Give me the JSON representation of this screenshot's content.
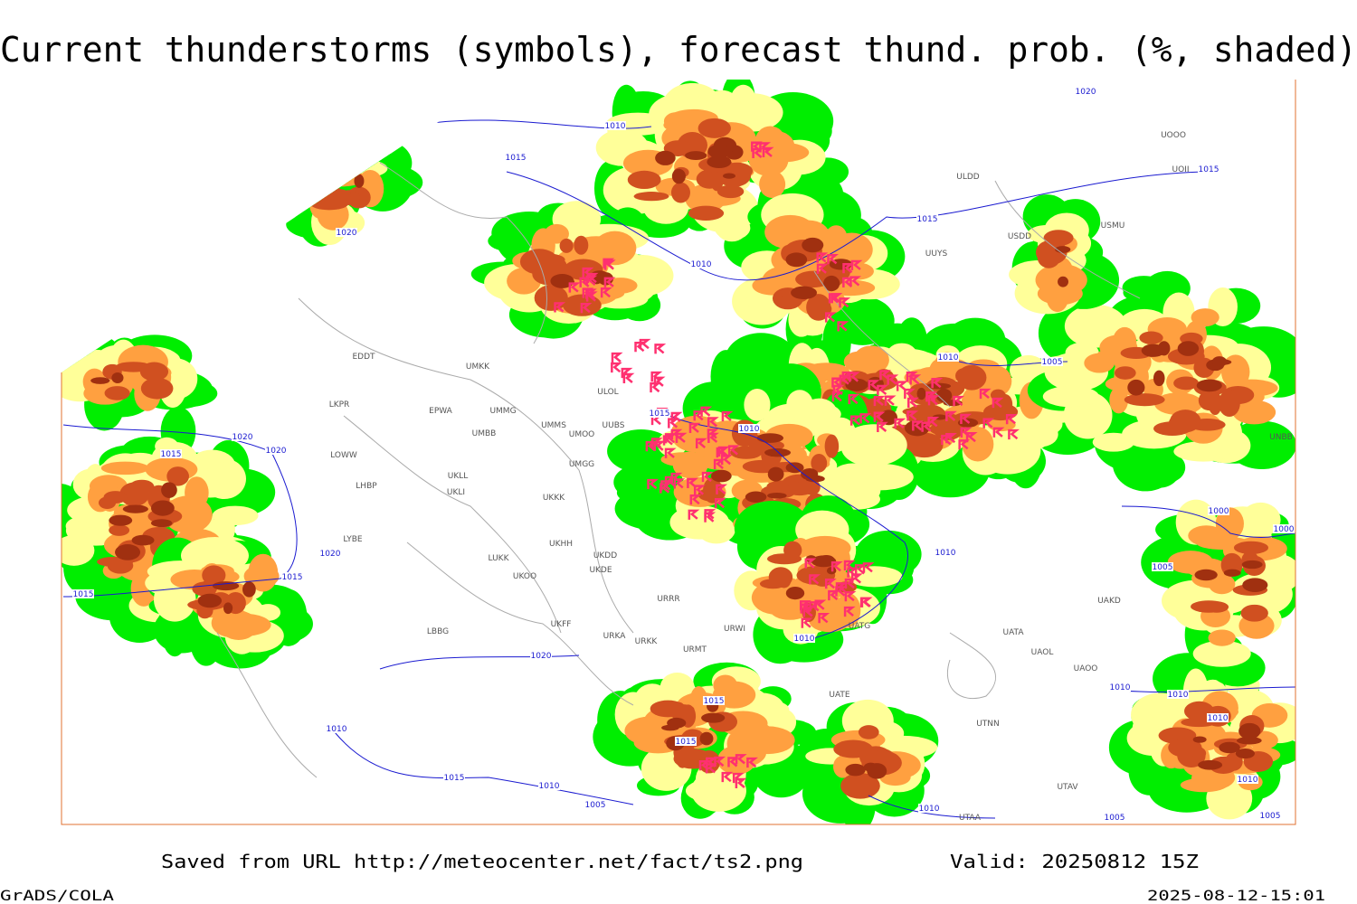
{
  "title": "Current thunderstorms (symbols), forecast thund. prob. (%, shaded)",
  "footer": {
    "saved": "Saved from URL http://meteocenter.net/fact/ts2.png",
    "valid": "Valid: 20250812 15Z",
    "credit": "GrADS/COLA",
    "timestamp": "2025-08-12-15:01"
  },
  "stations": [
    "ULDD",
    "USDD",
    "USMU",
    "UUYS",
    "ULOL",
    "EDDT",
    "EPWA",
    "UMMG",
    "UMKK",
    "UMBB",
    "UMMS",
    "UMOO",
    "UUBS",
    "LKPR",
    "LOWW",
    "LHBP",
    "UKLL",
    "UKLI",
    "UKKK",
    "UMGG",
    "LYBE",
    "LUKK",
    "UKOO",
    "UKHH",
    "UKDD",
    "UKDE",
    "LBBG",
    "UKFF",
    "URKA",
    "URKK",
    "URMT",
    "URRR",
    "URWI",
    "UATG",
    "UATA",
    "UAOL",
    "UAOO",
    "UAKD",
    "UATE",
    "UTNN",
    "UTAA",
    "UTAV",
    "UNBB",
    "UOOO",
    "UOII"
  ],
  "isobars": [
    "1020",
    "1010",
    "1015",
    "1020",
    "1010",
    "1015",
    "1015",
    "1010",
    "1005",
    "1015",
    "1010",
    "1020",
    "1020",
    "1015",
    "1020",
    "1015",
    "1015",
    "1010",
    "1000",
    "1000",
    "1005",
    "1010",
    "1020",
    "1010",
    "1010",
    "1015",
    "1010",
    "1010",
    "1015",
    "1015",
    "1010",
    "1005",
    "1010",
    "1010",
    "1005",
    "1005"
  ]
}
